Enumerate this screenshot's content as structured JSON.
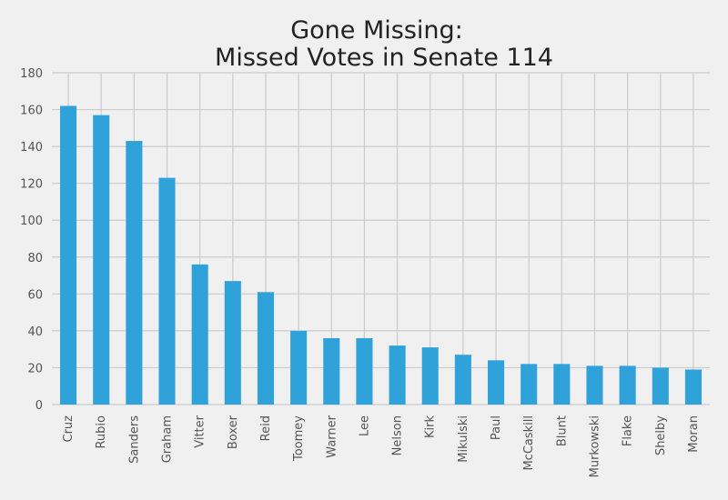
{
  "chart_data": {
    "type": "bar",
    "title_lines": [
      "Gone Missing:",
      "Missed Votes in Senate 114"
    ],
    "categories": [
      "Cruz",
      "Rubio",
      "Sanders",
      "Graham",
      "Vitter",
      "Boxer",
      "Reid",
      "Toomey",
      "Warner",
      "Lee",
      "Nelson",
      "Kirk",
      "Mikulski",
      "Paul",
      "McCaskill",
      "Blunt",
      "Murkowski",
      "Flake",
      "Shelby",
      "Moran"
    ],
    "values": [
      162,
      157,
      143,
      123,
      76,
      67,
      61,
      40,
      36,
      36,
      32,
      31,
      27,
      24,
      22,
      22,
      21,
      21,
      20,
      19
    ],
    "ylim": [
      0,
      180
    ],
    "yticks": [
      0,
      20,
      40,
      60,
      80,
      100,
      120,
      140,
      160,
      180
    ],
    "grid": true,
    "bar_color": "#30a2da",
    "background_color": "#f0f0f0",
    "grid_color": "#cbcbcb"
  }
}
